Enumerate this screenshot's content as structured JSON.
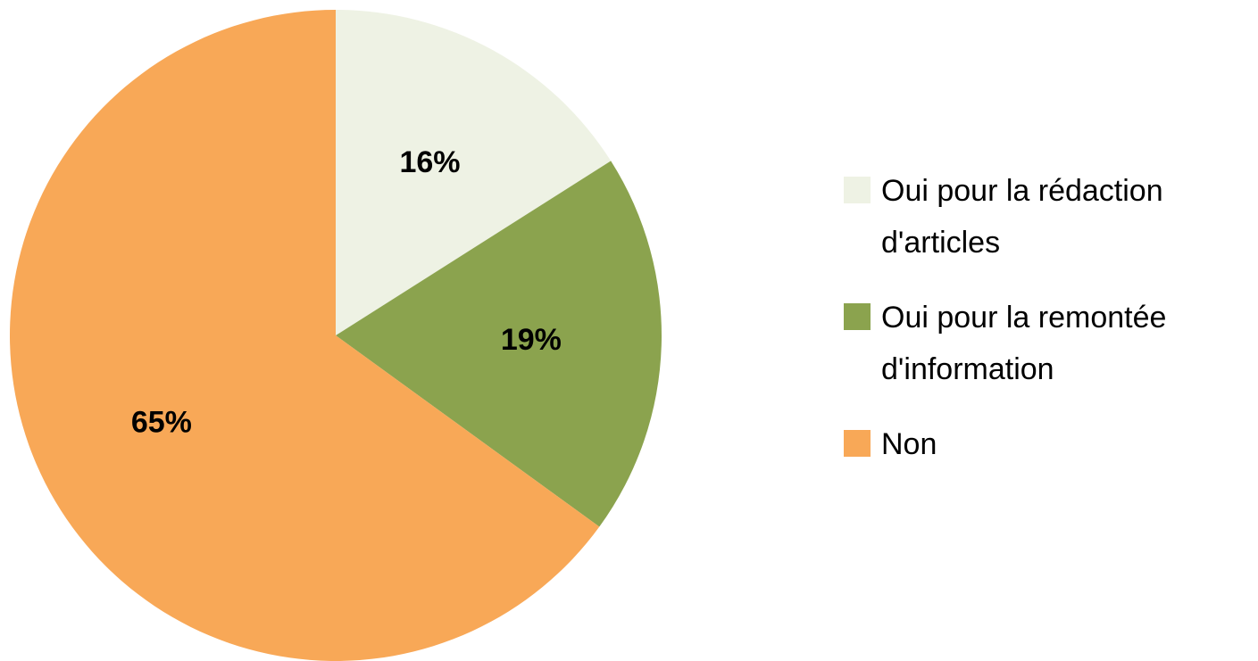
{
  "chart_data": {
    "type": "pie",
    "categories": [
      "Oui pour la rédaction d'articles",
      "Oui pour la remontée d'information",
      "Non"
    ],
    "values": [
      16,
      19,
      65
    ],
    "value_labels": [
      "16%",
      "19%",
      "65%"
    ],
    "colors": [
      "#eef2e4",
      "#8ba34e",
      "#f8a857"
    ],
    "legend": "right"
  }
}
